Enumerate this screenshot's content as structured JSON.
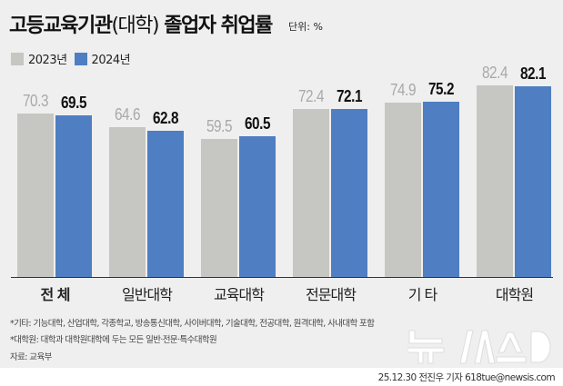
{
  "header": {
    "title_main": "고등교육기관",
    "title_paren": "(대학)",
    "title_rest": " 졸업자 취업률",
    "unit": "단위: %"
  },
  "legend": [
    {
      "label": "2023년",
      "color": "#c6c6c2"
    },
    {
      "label": "2024년",
      "color": "#4f7ec2"
    }
  ],
  "chart_data": {
    "type": "bar",
    "title": "고등교육기관(대학) 졸업자 취업률",
    "subtitle": "단위: %",
    "categories": [
      "전 체",
      "일반대학",
      "교육대학",
      "전문대학",
      "기 타",
      "대학원"
    ],
    "series": [
      {
        "name": "2023년",
        "color": "#c6c6c2",
        "values": [
          70.3,
          64.6,
          59.5,
          72.4,
          74.9,
          82.4
        ]
      },
      {
        "name": "2024년",
        "color": "#4f7ec2",
        "values": [
          69.5,
          62.8,
          60.5,
          72.1,
          75.2,
          82.1
        ]
      }
    ],
    "value_labels": {
      "2023년": [
        "70.3",
        "64.6",
        "59.5",
        "72.4",
        "74.9",
        "82.4"
      ],
      "2024년": [
        "69.5",
        "62.8",
        "60.5",
        "72.1",
        "75.2",
        "82.1"
      ]
    },
    "xlabel": "",
    "ylabel": "",
    "grid": false,
    "legend_position": "top-left"
  },
  "notes": [
    "*기타: 기능대학, 산업대학, 각종학교, 방송통신대학, 사이버대학, 기술대학, 전공대학, 원격대학, 사내대학 포함",
    "*대학원: 대학과 대학원대학에 두는 모든 일반·전문·특수대학원"
  ],
  "source": "자료: 교육부",
  "logo_text": "뉴시스",
  "credit": "25.12.30 전진우 기자 618tue@newsis.com"
}
